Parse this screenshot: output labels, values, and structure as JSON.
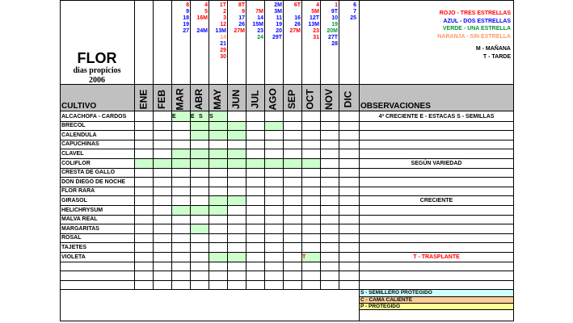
{
  "title": "FLOR",
  "subtitle": "dias propicios",
  "year": "2006",
  "cultivo_header": "CULTIVO",
  "observaciones_header": "OBSERVACIONES",
  "months": [
    "ENE",
    "FEB",
    "MAR",
    "ABR",
    "MAY",
    "JUN",
    "JUL",
    "AGO",
    "SEP",
    "OCT",
    "NOV",
    "DIC"
  ],
  "days": [
    [],
    [],
    [
      {
        "t": "8",
        "c": "#ff0000"
      },
      {
        "t": "9",
        "c": "#0000ff"
      },
      {
        "t": "18",
        "c": "#0000ff"
      },
      {
        "t": "19",
        "c": "#0000ff"
      },
      {
        "t": "27",
        "c": "#0000ff"
      }
    ],
    [
      {
        "t": "4",
        "c": "#ff0000"
      },
      {
        "t": "5",
        "c": "#ff0000"
      },
      {
        "t": "16M",
        "c": "#ff0000"
      },
      {
        "t": "",
        "c": "#000"
      },
      {
        "t": "24M",
        "c": "#0000ff"
      }
    ],
    [
      {
        "t": "1T",
        "c": "#ff0000"
      },
      {
        "t": "2",
        "c": "#ff0000"
      },
      {
        "t": "3",
        "c": "#ff0000"
      },
      {
        "t": "12",
        "c": "#ff0000"
      },
      {
        "t": "13M",
        "c": "#0000ff"
      },
      {
        "t": "14",
        "c": "#ff9966"
      },
      {
        "t": "21",
        "c": "#0000ff"
      },
      {
        "t": "29",
        "c": "#ff0000"
      },
      {
        "t": "30",
        "c": "#ff0000"
      }
    ],
    [
      {
        "t": "8T",
        "c": "#ff0000"
      },
      {
        "t": "9",
        "c": "#ff0000"
      },
      {
        "t": "17",
        "c": "#0000ff"
      },
      {
        "t": "26",
        "c": "#0000ff"
      },
      {
        "t": "27M",
        "c": "#ff0000"
      }
    ],
    [
      {
        "t": "",
        "c": "#000"
      },
      {
        "t": "7M",
        "c": "#ff0000"
      },
      {
        "t": "14",
        "c": "#0000ff"
      },
      {
        "t": "15M",
        "c": "#0000ff"
      },
      {
        "t": "23",
        "c": "#0000ff"
      },
      {
        "t": "24",
        "c": "#009933"
      }
    ],
    [
      {
        "t": "2M",
        "c": "#0000ff"
      },
      {
        "t": "3M",
        "c": "#0000ff"
      },
      {
        "t": "11",
        "c": "#0000ff"
      },
      {
        "t": "19",
        "c": "#0000ff"
      },
      {
        "t": "20",
        "c": "#0000ff"
      },
      {
        "t": "29T",
        "c": "#0000ff"
      }
    ],
    [
      {
        "t": "6T",
        "c": "#ff0000"
      },
      {
        "t": "",
        "c": "#000"
      },
      {
        "t": "16",
        "c": "#0000ff"
      },
      {
        "t": "26",
        "c": "#0000ff"
      },
      {
        "t": "27M",
        "c": "#ff0000"
      }
    ],
    [
      {
        "t": "4",
        "c": "#ff0000"
      },
      {
        "t": "5M",
        "c": "#ff0000"
      },
      {
        "t": "12T",
        "c": "#0000ff"
      },
      {
        "t": "13M",
        "c": "#0000ff"
      },
      {
        "t": "23",
        "c": "#ff0000"
      },
      {
        "t": "31",
        "c": "#ff0000"
      }
    ],
    [
      {
        "t": "1",
        "c": "#ff0000"
      },
      {
        "t": "9T",
        "c": "#0000ff"
      },
      {
        "t": "10",
        "c": "#0000ff"
      },
      {
        "t": "19",
        "c": "#009933"
      },
      {
        "t": "20M",
        "c": "#009933"
      },
      {
        "t": "27T",
        "c": "#0000ff"
      },
      {
        "t": "28",
        "c": "#0000ff"
      }
    ],
    [
      {
        "t": "6",
        "c": "#0000ff"
      },
      {
        "t": "7",
        "c": "#0000ff"
      },
      {
        "t": "25",
        "c": "#0000ff"
      }
    ]
  ],
  "star_legend": [
    {
      "text": "ROJO - TRES ESTRELLAS",
      "color": "#ff0000"
    },
    {
      "text": "AZUL - DOS ESTRELLAS",
      "color": "#0000ff"
    },
    {
      "text": "VERDE - UNA ESTRELLA",
      "color": "#009933"
    },
    {
      "text": "NARANJA - SIN ESTRELLA",
      "color": "#ff9966"
    }
  ],
  "time_legend": [
    "M - MAÑANA",
    "T - TARDE"
  ],
  "rows": [
    {
      "name": "ALCACHOFA - CARDOS",
      "green": [
        2,
        3,
        4
      ],
      "marks": [
        [
          2,
          "E"
        ],
        [
          3,
          "E"
        ],
        [
          3,
          "S"
        ],
        [
          4,
          "S"
        ]
      ],
      "obs": "4ª CRECIENTE E - ESTACAS S - SEMILLAS",
      "obs_color": "#000000"
    },
    {
      "name": "BRECOL",
      "green": [
        3,
        4,
        5,
        7
      ],
      "marks": [],
      "obs": "",
      "obs_color": "#000000"
    },
    {
      "name": "CALENDULA",
      "green": [
        3,
        4,
        5
      ],
      "marks": [],
      "obs": "",
      "obs_color": "#000000"
    },
    {
      "name": "CAPUCHINAS",
      "green": [],
      "marks": [],
      "obs": "",
      "obs_color": "#000000"
    },
    {
      "name": "CLAVEL",
      "green": [
        2,
        3,
        4,
        5
      ],
      "marks": [],
      "obs": "",
      "obs_color": "#000000"
    },
    {
      "name": "COLIFLOR",
      "green": [
        0,
        1,
        2,
        3,
        4,
        5,
        6,
        7,
        8,
        9
      ],
      "marks": [],
      "obs": "SEGÚN VARIEDAD",
      "obs_color": "#000000"
    },
    {
      "name": "CRESTA DE GALLO",
      "green": [],
      "marks": [],
      "obs": "",
      "obs_color": "#000000"
    },
    {
      "name": "DON DIEGO DE NOCHE",
      "green": [],
      "marks": [],
      "obs": "",
      "obs_color": "#000000"
    },
    {
      "name": "FLOR RARA",
      "green": [],
      "marks": [],
      "obs": "",
      "obs_color": "#000000"
    },
    {
      "name": "GIRASOL",
      "green": [
        4,
        5
      ],
      "marks": [],
      "obs": "CRECIENTE",
      "obs_color": "#000000"
    },
    {
      "name": "HELICHRYSUM",
      "green": [
        2,
        3,
        4
      ],
      "marks": [],
      "obs": "",
      "obs_color": "#000000"
    },
    {
      "name": "MALVA REAL",
      "green": [],
      "marks": [],
      "obs": "",
      "obs_color": "#000000"
    },
    {
      "name": "MARGARITAS",
      "green": [
        3
      ],
      "marks": [],
      "obs": "",
      "obs_color": "#000000"
    },
    {
      "name": "ROSAL",
      "green": [],
      "marks": [],
      "obs": "",
      "obs_color": "#000000"
    },
    {
      "name": "TAJETES",
      "green": [],
      "marks": [],
      "obs": "",
      "obs_color": "#000000"
    },
    {
      "name": "VIOLETA",
      "green": [
        4,
        5,
        9
      ],
      "marks": [
        [
          9,
          "T"
        ]
      ],
      "obs": "T - TRASPLANTE",
      "obs_color": "#ff0000"
    },
    {
      "name": "",
      "green": [],
      "marks": [],
      "obs": "",
      "obs_color": "#000000"
    },
    {
      "name": "",
      "green": [],
      "marks": [],
      "obs": "",
      "obs_color": "#000000"
    },
    {
      "name": "",
      "green": [],
      "marks": [],
      "obs": "",
      "obs_color": "#000000"
    }
  ],
  "protection_legend": [
    {
      "text": "S - SEMILLERO PROTEGIDO",
      "bg": "#ccffff"
    },
    {
      "text": "C - CAMA CALIENTE",
      "bg": "#ffcc99"
    },
    {
      "text": "P - PROTEGIDO",
      "bg": "#ffff99"
    }
  ]
}
